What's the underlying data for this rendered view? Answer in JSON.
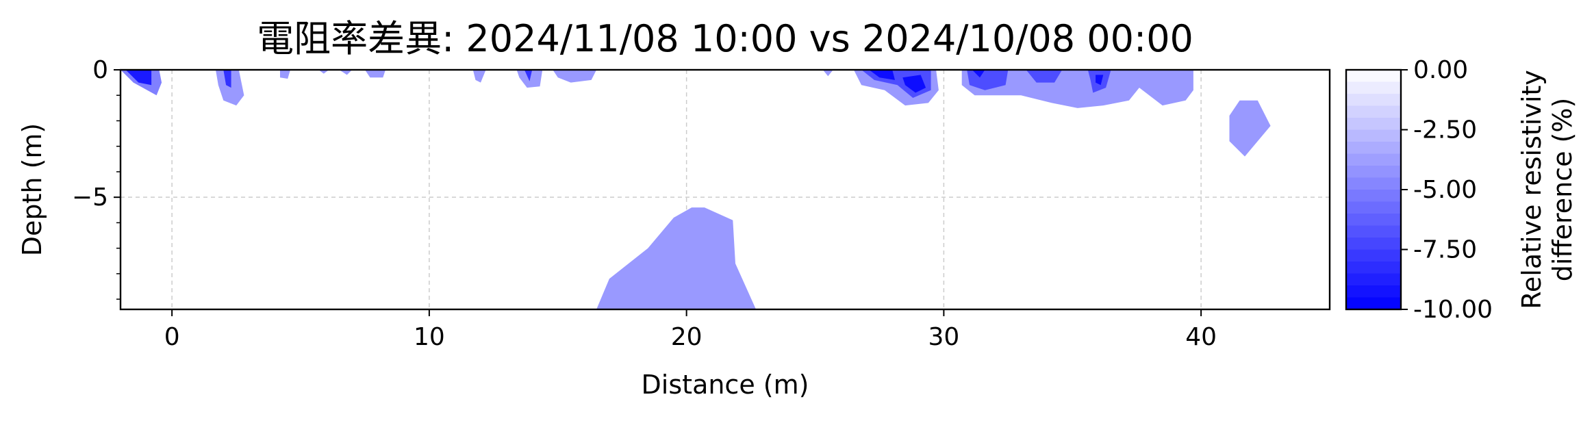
{
  "chart_data": {
    "type": "contour",
    "title": "電阻率差異: 2024/11/08 10:00 vs 2024/10/08 00:00",
    "xlabel": "Distance (m)",
    "ylabel": "Depth (m)",
    "xlim": [
      -2,
      45
    ],
    "ylim": [
      -9.4,
      0
    ],
    "xticks": [
      0,
      10,
      20,
      30,
      40
    ],
    "xtick_labels": [
      "0",
      "10",
      "20",
      "30",
      "40"
    ],
    "yticks": [
      0,
      -5
    ],
    "ytick_labels": [
      "0",
      "−5"
    ],
    "y_minor_ticks": [
      -1,
      -2,
      -3,
      -4,
      -6,
      -7,
      -8,
      -9
    ],
    "grid": true,
    "colorbar": {
      "label_line1": "Relative resistivity",
      "label_line2": "difference (%)",
      "min": -10,
      "max": 0,
      "levels": 20,
      "color_low": "#0000ff",
      "color_high": "#ffffff",
      "ticks": [
        0,
        -2.5,
        -5,
        -7.5,
        -10
      ],
      "tick_labels": [
        "0.00",
        "-2.50",
        "-5.00",
        "-7.50",
        "-10.00"
      ]
    },
    "regions": [
      {
        "name": "surface-left",
        "value": -5,
        "points": [
          [
            -2,
            0
          ],
          [
            -0.5,
            0
          ],
          [
            -0.4,
            -0.5
          ],
          [
            -0.6,
            -1.0
          ],
          [
            -1.5,
            -0.5
          ]
        ]
      },
      {
        "name": "surface-left",
        "value": -9,
        "points": [
          [
            -1.8,
            0
          ],
          [
            -0.8,
            0
          ],
          [
            -0.8,
            -0.6
          ],
          [
            -1.3,
            -0.5
          ]
        ]
      },
      {
        "name": "patch-2m",
        "value": -4,
        "points": [
          [
            1.7,
            0
          ],
          [
            2.6,
            0
          ],
          [
            2.8,
            -1.0
          ],
          [
            2.5,
            -1.4
          ],
          [
            2.0,
            -1.2
          ],
          [
            1.8,
            -0.6
          ]
        ]
      },
      {
        "name": "patch-2m",
        "value": -8,
        "points": [
          [
            2.0,
            0
          ],
          [
            2.3,
            0
          ],
          [
            2.3,
            -0.7
          ],
          [
            2.1,
            -0.6
          ]
        ]
      },
      {
        "name": "patch-4m",
        "value": -4,
        "points": [
          [
            4.2,
            0
          ],
          [
            4.6,
            0
          ],
          [
            4.5,
            -0.35
          ],
          [
            4.2,
            -0.3
          ]
        ]
      },
      {
        "name": "patch-6m",
        "value": -4,
        "points": [
          [
            5.7,
            0
          ],
          [
            6.1,
            0
          ],
          [
            5.9,
            -0.15
          ]
        ]
      },
      {
        "name": "patch-7m",
        "value": -4,
        "points": [
          [
            6.5,
            0
          ],
          [
            7.0,
            0
          ],
          [
            6.8,
            -0.2
          ]
        ]
      },
      {
        "name": "patch-8m",
        "value": -4,
        "points": [
          [
            7.5,
            0
          ],
          [
            8.3,
            0
          ],
          [
            8.2,
            -0.3
          ],
          [
            7.7,
            -0.3
          ]
        ]
      },
      {
        "name": "patch-12m",
        "value": -4,
        "points": [
          [
            11.7,
            0
          ],
          [
            12.2,
            0
          ],
          [
            12.0,
            -0.5
          ],
          [
            11.8,
            -0.4
          ]
        ]
      },
      {
        "name": "patch-14m",
        "value": -4,
        "points": [
          [
            13.4,
            0
          ],
          [
            14.4,
            0
          ],
          [
            14.3,
            -0.65
          ],
          [
            13.8,
            -0.7
          ],
          [
            13.5,
            -0.3
          ]
        ]
      },
      {
        "name": "patch-14m",
        "value": -8,
        "points": [
          [
            13.7,
            0
          ],
          [
            14.0,
            0
          ],
          [
            13.9,
            -0.45
          ]
        ]
      },
      {
        "name": "patch-15m",
        "value": -4,
        "points": [
          [
            14.8,
            0
          ],
          [
            16.5,
            0
          ],
          [
            16.3,
            -0.4
          ],
          [
            15.5,
            -0.5
          ],
          [
            15.0,
            -0.3
          ]
        ]
      },
      {
        "name": "deep-anomaly",
        "value": -4,
        "points": [
          [
            16.5,
            -9.4
          ],
          [
            17.0,
            -8.2
          ],
          [
            18.5,
            -7.0
          ],
          [
            19.5,
            -5.8
          ],
          [
            20.2,
            -5.4
          ],
          [
            20.7,
            -5.4
          ],
          [
            21.8,
            -5.9
          ],
          [
            21.9,
            -7.6
          ],
          [
            22.7,
            -9.4
          ]
        ]
      },
      {
        "name": "patch-25m",
        "value": -4,
        "points": [
          [
            25.3,
            0
          ],
          [
            25.7,
            0
          ],
          [
            25.5,
            -0.25
          ]
        ]
      },
      {
        "name": "anomaly-28m",
        "value": -4,
        "points": [
          [
            26.5,
            0
          ],
          [
            29.7,
            0
          ],
          [
            29.8,
            -0.8
          ],
          [
            29.4,
            -1.3
          ],
          [
            28.5,
            -1.4
          ],
          [
            27.7,
            -0.8
          ],
          [
            26.8,
            -0.6
          ]
        ]
      },
      {
        "name": "anomaly-28m",
        "value": -7,
        "points": [
          [
            26.8,
            0
          ],
          [
            29.5,
            0
          ],
          [
            29.5,
            -0.8
          ],
          [
            28.8,
            -1.1
          ],
          [
            28.2,
            -0.6
          ],
          [
            27.3,
            -0.4
          ]
        ]
      },
      {
        "name": "anomaly-28m",
        "value": -9.5,
        "points": [
          [
            27.1,
            0
          ],
          [
            28.0,
            0
          ],
          [
            28.1,
            -0.4
          ],
          [
            27.5,
            -0.3
          ]
        ]
      },
      {
        "name": "anomaly-28m",
        "value": -9.5,
        "points": [
          [
            28.4,
            -0.3
          ],
          [
            29.1,
            -0.2
          ],
          [
            29.3,
            -0.7
          ],
          [
            28.9,
            -0.9
          ],
          [
            28.5,
            -0.6
          ]
        ]
      },
      {
        "name": "anomaly-34m",
        "value": -4,
        "points": [
          [
            30.7,
            0
          ],
          [
            39.7,
            0
          ],
          [
            39.7,
            -0.8
          ],
          [
            39.4,
            -1.2
          ],
          [
            38.5,
            -1.4
          ],
          [
            37.6,
            -0.7
          ],
          [
            37.2,
            -1.2
          ],
          [
            36.2,
            -1.4
          ],
          [
            35.2,
            -1.5
          ],
          [
            34.2,
            -1.3
          ],
          [
            33.0,
            -1.0
          ],
          [
            32.2,
            -1.0
          ],
          [
            31.2,
            -1.0
          ],
          [
            30.7,
            -0.6
          ]
        ]
      },
      {
        "name": "anomaly-34m",
        "value": -7,
        "points": [
          [
            30.9,
            0
          ],
          [
            32.5,
            0
          ],
          [
            32.4,
            -0.6
          ],
          [
            31.6,
            -0.8
          ],
          [
            31.0,
            -0.6
          ]
        ]
      },
      {
        "name": "anomaly-34m",
        "value": -7,
        "points": [
          [
            33.2,
            0
          ],
          [
            34.6,
            0
          ],
          [
            34.3,
            -0.5
          ],
          [
            33.6,
            -0.5
          ]
        ]
      },
      {
        "name": "anomaly-34m",
        "value": -7,
        "points": [
          [
            35.6,
            0
          ],
          [
            36.5,
            0
          ],
          [
            36.3,
            -0.7
          ],
          [
            35.8,
            -0.9
          ],
          [
            35.7,
            -0.4
          ]
        ]
      },
      {
        "name": "anomaly-34m",
        "value": -9.5,
        "points": [
          [
            31.1,
            0
          ],
          [
            31.6,
            0
          ],
          [
            31.4,
            -0.3
          ]
        ]
      },
      {
        "name": "anomaly-34m",
        "value": -9.5,
        "points": [
          [
            35.9,
            -0.2
          ],
          [
            36.2,
            -0.2
          ],
          [
            36.1,
            -0.6
          ],
          [
            35.9,
            -0.5
          ]
        ]
      },
      {
        "name": "patch-42m",
        "value": -4,
        "points": [
          [
            41.5,
            -1.2
          ],
          [
            42.2,
            -1.2
          ],
          [
            42.7,
            -2.2
          ],
          [
            41.7,
            -3.4
          ],
          [
            41.1,
            -2.8
          ],
          [
            41.1,
            -1.8
          ]
        ]
      }
    ]
  }
}
